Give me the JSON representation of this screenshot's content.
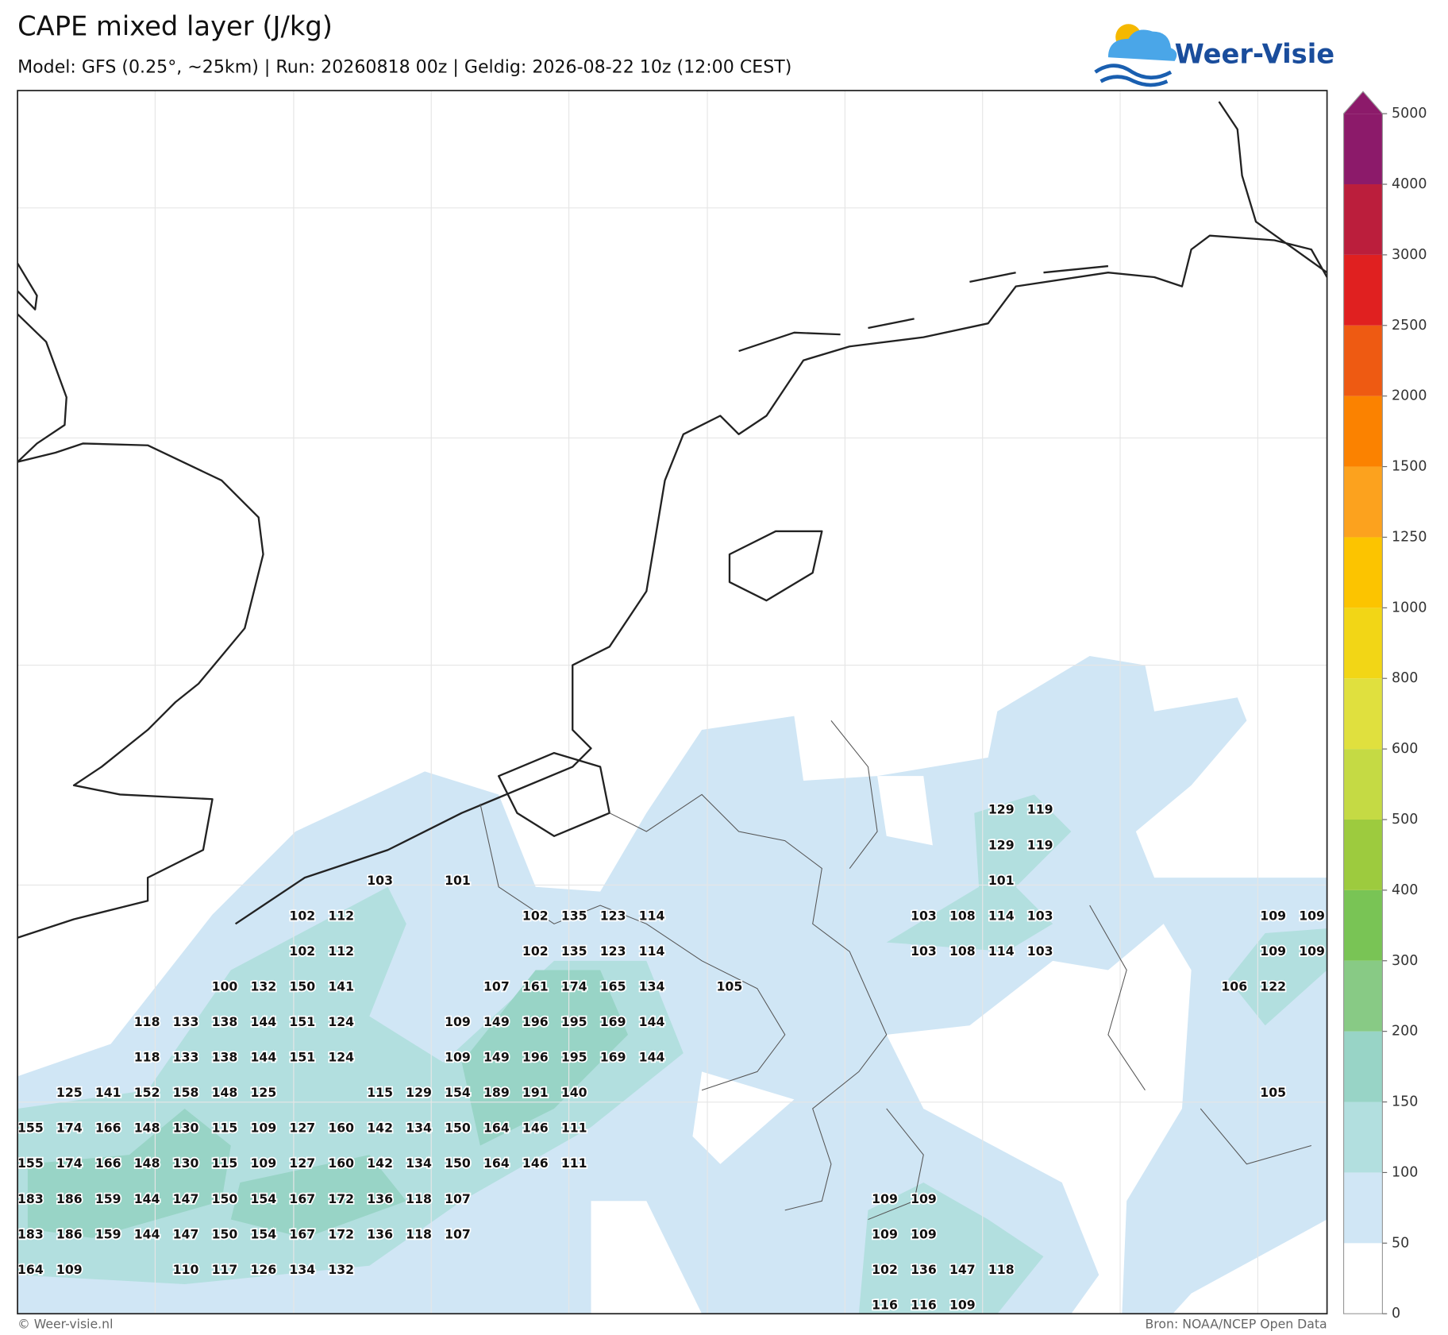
{
  "header": {
    "title": "CAPE mixed layer (J/kg)",
    "subtitle": "Model: GFS (0.25°, ~25km)  |  Run: 20260818 00z  |  Geldig: 2026-08-22 10z (12:00 CEST)"
  },
  "logo": {
    "text": "Weer-Visie"
  },
  "colorbar": {
    "levels": [
      0,
      50,
      100,
      150,
      200,
      300,
      400,
      500,
      600,
      800,
      1000,
      1250,
      1500,
      2000,
      2500,
      3000,
      4000,
      5000
    ],
    "colors": [
      "#ffffff",
      "#d0e6f5",
      "#b2dfdf",
      "#98d4c6",
      "#88ca85",
      "#79c455",
      "#9dcb3e",
      "#c5da44",
      "#e0e03e",
      "#f2d616",
      "#fcc400",
      "#fca21e",
      "#fb8200",
      "#ee5a12",
      "#e02020",
      "#bb1e3c",
      "#8c1a6a"
    ],
    "over_color": "#8c1a6a"
  },
  "map": {
    "labels": [
      [
        null,
        null,
        null,
        null,
        null,
        null,
        null,
        null,
        null,
        null,
        null,
        null,
        null,
        null,
        null,
        null,
        null,
        null,
        null,
        null,
        null,
        null,
        null,
        null,
        null,
        129,
        119
      ],
      [
        null,
        null,
        null,
        null,
        null,
        null,
        null,
        null,
        null,
        null,
        null,
        null,
        null,
        null,
        null,
        null,
        null,
        null,
        null,
        null,
        null,
        null,
        null,
        null,
        null,
        129,
        119
      ],
      [
        null,
        null,
        null,
        null,
        null,
        null,
        null,
        null,
        null,
        103,
        null,
        101,
        null,
        null,
        null,
        null,
        null,
        null,
        null,
        null,
        null,
        null,
        null,
        null,
        null,
        101
      ],
      [
        null,
        null,
        null,
        null,
        null,
        null,
        null,
        102,
        112,
        null,
        null,
        null,
        null,
        102,
        135,
        123,
        114,
        null,
        null,
        null,
        null,
        null,
        null,
        103,
        108,
        114,
        103,
        null,
        null,
        null,
        null,
        null,
        109,
        109
      ],
      [
        null,
        null,
        null,
        null,
        null,
        null,
        null,
        102,
        112,
        null,
        null,
        null,
        null,
        102,
        135,
        123,
        114,
        null,
        null,
        null,
        null,
        null,
        null,
        103,
        108,
        114,
        103,
        null,
        null,
        null,
        null,
        null,
        109,
        109
      ],
      [
        null,
        null,
        null,
        null,
        null,
        100,
        132,
        150,
        141,
        null,
        null,
        null,
        107,
        161,
        174,
        165,
        134,
        null,
        105,
        null,
        null,
        null,
        null,
        null,
        null,
        null,
        null,
        null,
        null,
        null,
        null,
        106,
        122
      ],
      [
        null,
        null,
        null,
        118,
        133,
        138,
        144,
        151,
        124,
        null,
        null,
        109,
        149,
        196,
        195,
        169,
        144
      ],
      [
        null,
        null,
        null,
        118,
        133,
        138,
        144,
        151,
        124,
        null,
        null,
        109,
        149,
        196,
        195,
        169,
        144
      ],
      [
        null,
        125,
        141,
        152,
        158,
        148,
        125,
        null,
        null,
        115,
        129,
        154,
        189,
        191,
        140,
        null,
        null,
        null,
        null,
        null,
        null,
        null,
        null,
        null,
        null,
        null,
        null,
        null,
        null,
        null,
        null,
        null,
        105
      ],
      [
        155,
        174,
        166,
        148,
        130,
        115,
        109,
        127,
        160,
        142,
        134,
        150,
        164,
        146,
        111
      ],
      [
        155,
        174,
        166,
        148,
        130,
        115,
        109,
        127,
        160,
        142,
        134,
        150,
        164,
        146,
        111
      ],
      [
        183,
        186,
        159,
        144,
        147,
        150,
        154,
        167,
        172,
        136,
        118,
        107,
        null,
        null,
        null,
        null,
        null,
        null,
        null,
        null,
        null,
        null,
        109,
        109
      ],
      [
        183,
        186,
        159,
        144,
        147,
        150,
        154,
        167,
        172,
        136,
        118,
        107,
        null,
        null,
        null,
        null,
        null,
        null,
        null,
        null,
        null,
        null,
        109,
        109
      ],
      [
        164,
        109,
        null,
        null,
        110,
        117,
        126,
        134,
        132,
        null,
        null,
        null,
        null,
        null,
        null,
        null,
        null,
        null,
        null,
        null,
        null,
        null,
        102,
        136,
        147,
        118
      ],
      [
        null,
        null,
        null,
        null,
        null,
        null,
        null,
        null,
        null,
        null,
        null,
        null,
        null,
        null,
        null,
        null,
        null,
        null,
        null,
        null,
        null,
        null,
        116,
        116,
        109
      ]
    ]
  },
  "footer": {
    "left": "© Weer-visie.nl",
    "right": "Bron: NOAA/NCEP Open Data"
  }
}
